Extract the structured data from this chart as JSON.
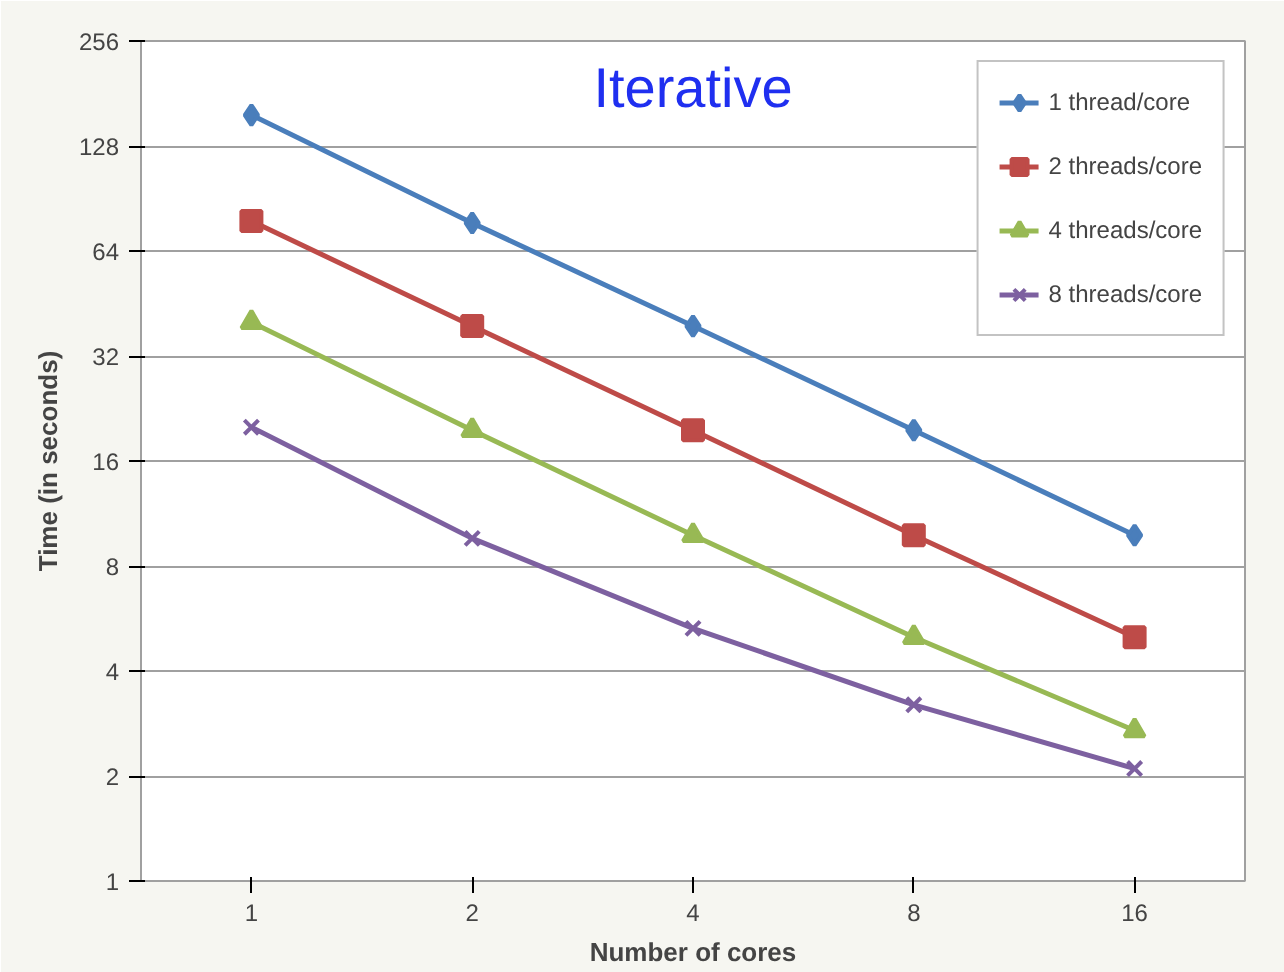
{
  "chart_data": {
    "type": "line",
    "title": "Iterative",
    "xlabel": "Number of cores",
    "ylabel": "Time (in seconds)",
    "categories": [
      "1",
      "2",
      "4",
      "8",
      "16"
    ],
    "series": [
      {
        "name": "1 thread/core",
        "color": "#4a7ebb",
        "marker": "diamond",
        "values": [
          157,
          77,
          39,
          19.6,
          9.8
        ]
      },
      {
        "name": "2 threads/core",
        "color": "#be4b48",
        "marker": "square",
        "values": [
          78,
          39,
          19.6,
          9.8,
          5.0
        ]
      },
      {
        "name": "4 threads/core",
        "color": "#98b954",
        "marker": "triangle",
        "values": [
          40,
          19.6,
          9.8,
          5.0,
          2.7
        ]
      },
      {
        "name": "8 threads/core",
        "color": "#7d60a0",
        "marker": "cross",
        "values": [
          20,
          9.6,
          5.3,
          3.2,
          2.1
        ]
      }
    ],
    "log": "y",
    "ylim": [
      1,
      256
    ],
    "yticks": [
      1,
      2,
      4,
      8,
      16,
      32,
      64,
      128,
      256
    ],
    "grid": "y",
    "legend": "top right",
    "line_style": "solid"
  }
}
